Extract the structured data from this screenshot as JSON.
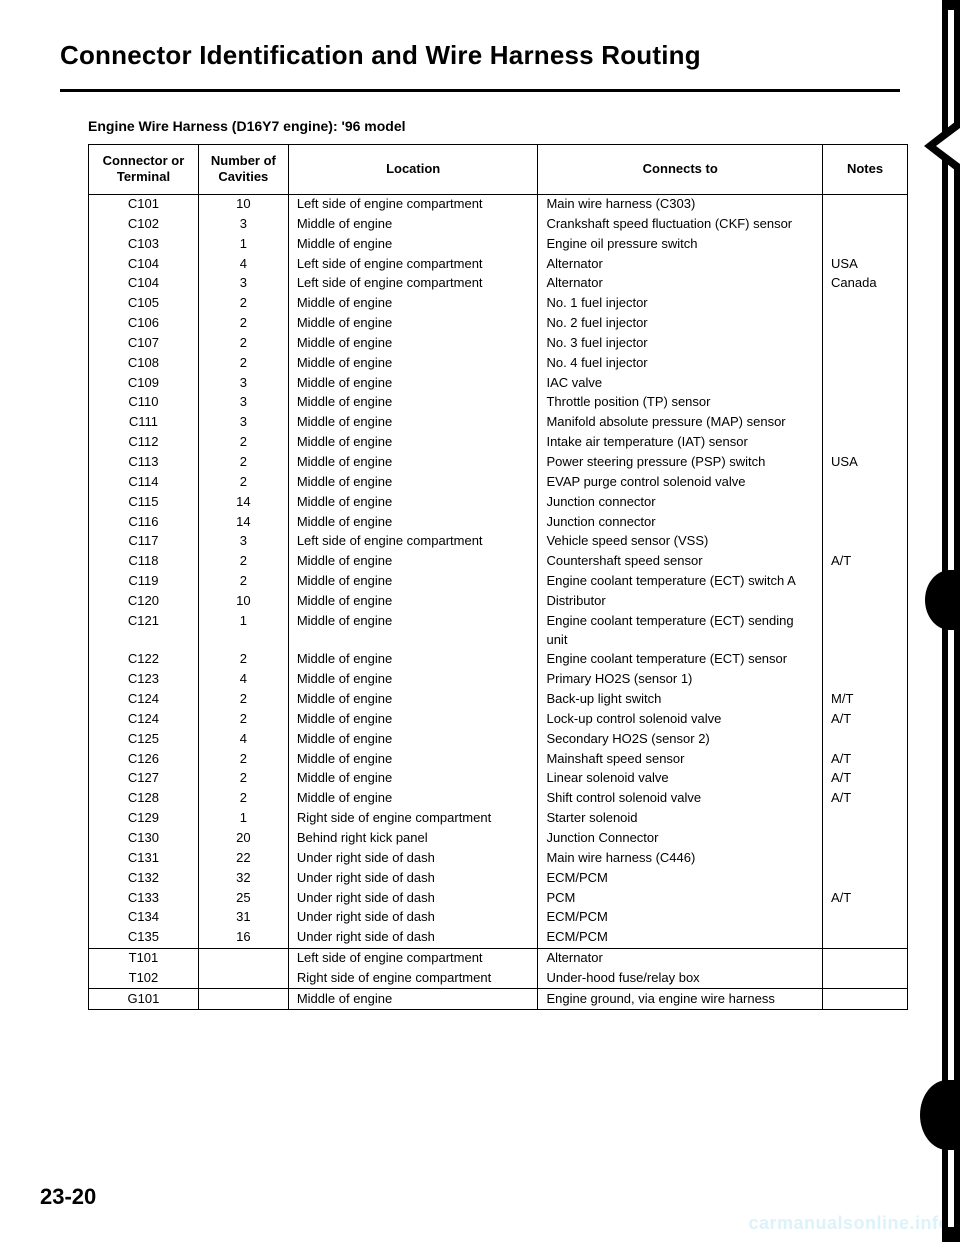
{
  "title": "Connector Identification and Wire Harness Routing",
  "subtitle": "Engine Wire Harness (D16Y7 engine): '96 model",
  "headers": {
    "c1": "Connector or Terminal",
    "c2": "Number of Cavities",
    "c3": "Location",
    "c4": "Connects to",
    "c5": "Notes"
  },
  "sections": [
    {
      "rows": [
        {
          "c1": "C101",
          "c2": "10",
          "c3": "Left side of engine compartment",
          "c4": "Main wire harness (C303)",
          "c5": ""
        },
        {
          "c1": "C102",
          "c2": "3",
          "c3": "Middle of engine",
          "c4": "Crankshaft speed fluctuation (CKF) sensor",
          "c5": ""
        },
        {
          "c1": "C103",
          "c2": "1",
          "c3": "Middle of engine",
          "c4": "Engine oil pressure switch",
          "c5": ""
        },
        {
          "c1": "C104",
          "c2": "4",
          "c3": "Left side of engine compartment",
          "c4": "Alternator",
          "c5": "USA"
        },
        {
          "c1": "C104",
          "c2": "3",
          "c3": "Left side of engine compartment",
          "c4": "Alternator",
          "c5": "Canada"
        },
        {
          "c1": "C105",
          "c2": "2",
          "c3": "Middle of engine",
          "c4": "No. 1 fuel injector",
          "c5": ""
        },
        {
          "c1": "C106",
          "c2": "2",
          "c3": "Middle of engine",
          "c4": "No. 2 fuel injector",
          "c5": ""
        },
        {
          "c1": "C107",
          "c2": "2",
          "c3": "Middle of engine",
          "c4": "No. 3 fuel injector",
          "c5": ""
        },
        {
          "c1": "C108",
          "c2": "2",
          "c3": "Middle of engine",
          "c4": "No. 4 fuel injector",
          "c5": ""
        },
        {
          "c1": "C109",
          "c2": "3",
          "c3": "Middle of engine",
          "c4": "IAC valve",
          "c5": ""
        },
        {
          "c1": "C110",
          "c2": "3",
          "c3": "Middle of engine",
          "c4": "Throttle position (TP) sensor",
          "c5": ""
        },
        {
          "c1": "C111",
          "c2": "3",
          "c3": "Middle of engine",
          "c4": "Manifold absolute pressure (MAP) sensor",
          "c5": ""
        },
        {
          "c1": "C112",
          "c2": "2",
          "c3": "Middle of engine",
          "c4": "Intake air temperature (IAT) sensor",
          "c5": ""
        },
        {
          "c1": "C113",
          "c2": "2",
          "c3": "Middle of engine",
          "c4": "Power steering pressure (PSP) switch",
          "c5": "USA"
        },
        {
          "c1": "C114",
          "c2": "2",
          "c3": "Middle of engine",
          "c4": "EVAP purge control solenoid valve",
          "c5": ""
        },
        {
          "c1": "C115",
          "c2": "14",
          "c3": "Middle of engine",
          "c4": "Junction connector",
          "c5": ""
        },
        {
          "c1": "C116",
          "c2": "14",
          "c3": "Middle of engine",
          "c4": "Junction connector",
          "c5": ""
        },
        {
          "c1": "C117",
          "c2": "3",
          "c3": "Left side of engine compartment",
          "c4": "Vehicle speed sensor (VSS)",
          "c5": ""
        },
        {
          "c1": "C118",
          "c2": "2",
          "c3": "Middle of engine",
          "c4": "Countershaft speed sensor",
          "c5": "A/T"
        },
        {
          "c1": "C119",
          "c2": "2",
          "c3": "Middle of engine",
          "c4": "Engine coolant temperature (ECT) switch A",
          "c5": ""
        },
        {
          "c1": "C120",
          "c2": "10",
          "c3": "Middle of engine",
          "c4": "Distributor",
          "c5": ""
        },
        {
          "c1": "C121",
          "c2": "1",
          "c3": "Middle of engine",
          "c4": "Engine coolant temperature (ECT) sending unit",
          "c5": ""
        },
        {
          "c1": "C122",
          "c2": "2",
          "c3": "Middle of engine",
          "c4": "Engine coolant temperature (ECT) sensor",
          "c5": ""
        },
        {
          "c1": "C123",
          "c2": "4",
          "c3": "Middle of engine",
          "c4": "Primary HO2S (sensor 1)",
          "c5": ""
        },
        {
          "c1": "C124",
          "c2": "2",
          "c3": "Middle of engine",
          "c4": "Back-up light switch",
          "c5": "M/T"
        },
        {
          "c1": "C124",
          "c2": "2",
          "c3": "Middle of engine",
          "c4": "Lock-up control solenoid valve",
          "c5": "A/T"
        },
        {
          "c1": "C125",
          "c2": "4",
          "c3": "Middle of engine",
          "c4": "Secondary HO2S (sensor 2)",
          "c5": ""
        },
        {
          "c1": "C126",
          "c2": "2",
          "c3": "Middle of engine",
          "c4": "Mainshaft speed sensor",
          "c5": "A/T"
        },
        {
          "c1": "C127",
          "c2": "2",
          "c3": "Middle of engine",
          "c4": "Linear solenoid valve",
          "c5": "A/T"
        },
        {
          "c1": "C128",
          "c2": "2",
          "c3": "Middle of engine",
          "c4": "Shift control solenoid valve",
          "c5": "A/T"
        },
        {
          "c1": "C129",
          "c2": "1",
          "c3": "Right side of engine compartment",
          "c4": "Starter solenoid",
          "c5": ""
        },
        {
          "c1": "C130",
          "c2": "20",
          "c3": "Behind right kick panel",
          "c4": "Junction Connector",
          "c5": ""
        },
        {
          "c1": "C131",
          "c2": "22",
          "c3": "Under right side of dash",
          "c4": "Main wire harness (C446)",
          "c5": ""
        },
        {
          "c1": "C132",
          "c2": "32",
          "c3": "Under right side of dash",
          "c4": "ECM/PCM",
          "c5": ""
        },
        {
          "c1": "C133",
          "c2": "25",
          "c3": "Under right side of dash",
          "c4": "PCM",
          "c5": "A/T"
        },
        {
          "c1": "C134",
          "c2": "31",
          "c3": "Under right side of dash",
          "c4": "ECM/PCM",
          "c5": ""
        },
        {
          "c1": "C135",
          "c2": "16",
          "c3": "Under right side of dash",
          "c4": "ECM/PCM",
          "c5": ""
        }
      ]
    },
    {
      "rows": [
        {
          "c1": "T101",
          "c2": "",
          "c3": "Left side of engine compartment",
          "c4": "Alternator",
          "c5": ""
        },
        {
          "c1": "T102",
          "c2": "",
          "c3": "Right side of engine compartment",
          "c4": "Under-hood fuse/relay box",
          "c5": ""
        }
      ]
    },
    {
      "rows": [
        {
          "c1": "G101",
          "c2": "",
          "c3": "Middle of engine",
          "c4": "Engine ground, via engine wire harness",
          "c5": ""
        }
      ]
    }
  ],
  "pageNumber": "23-20",
  "watermark": "carmanualsonline.info"
}
